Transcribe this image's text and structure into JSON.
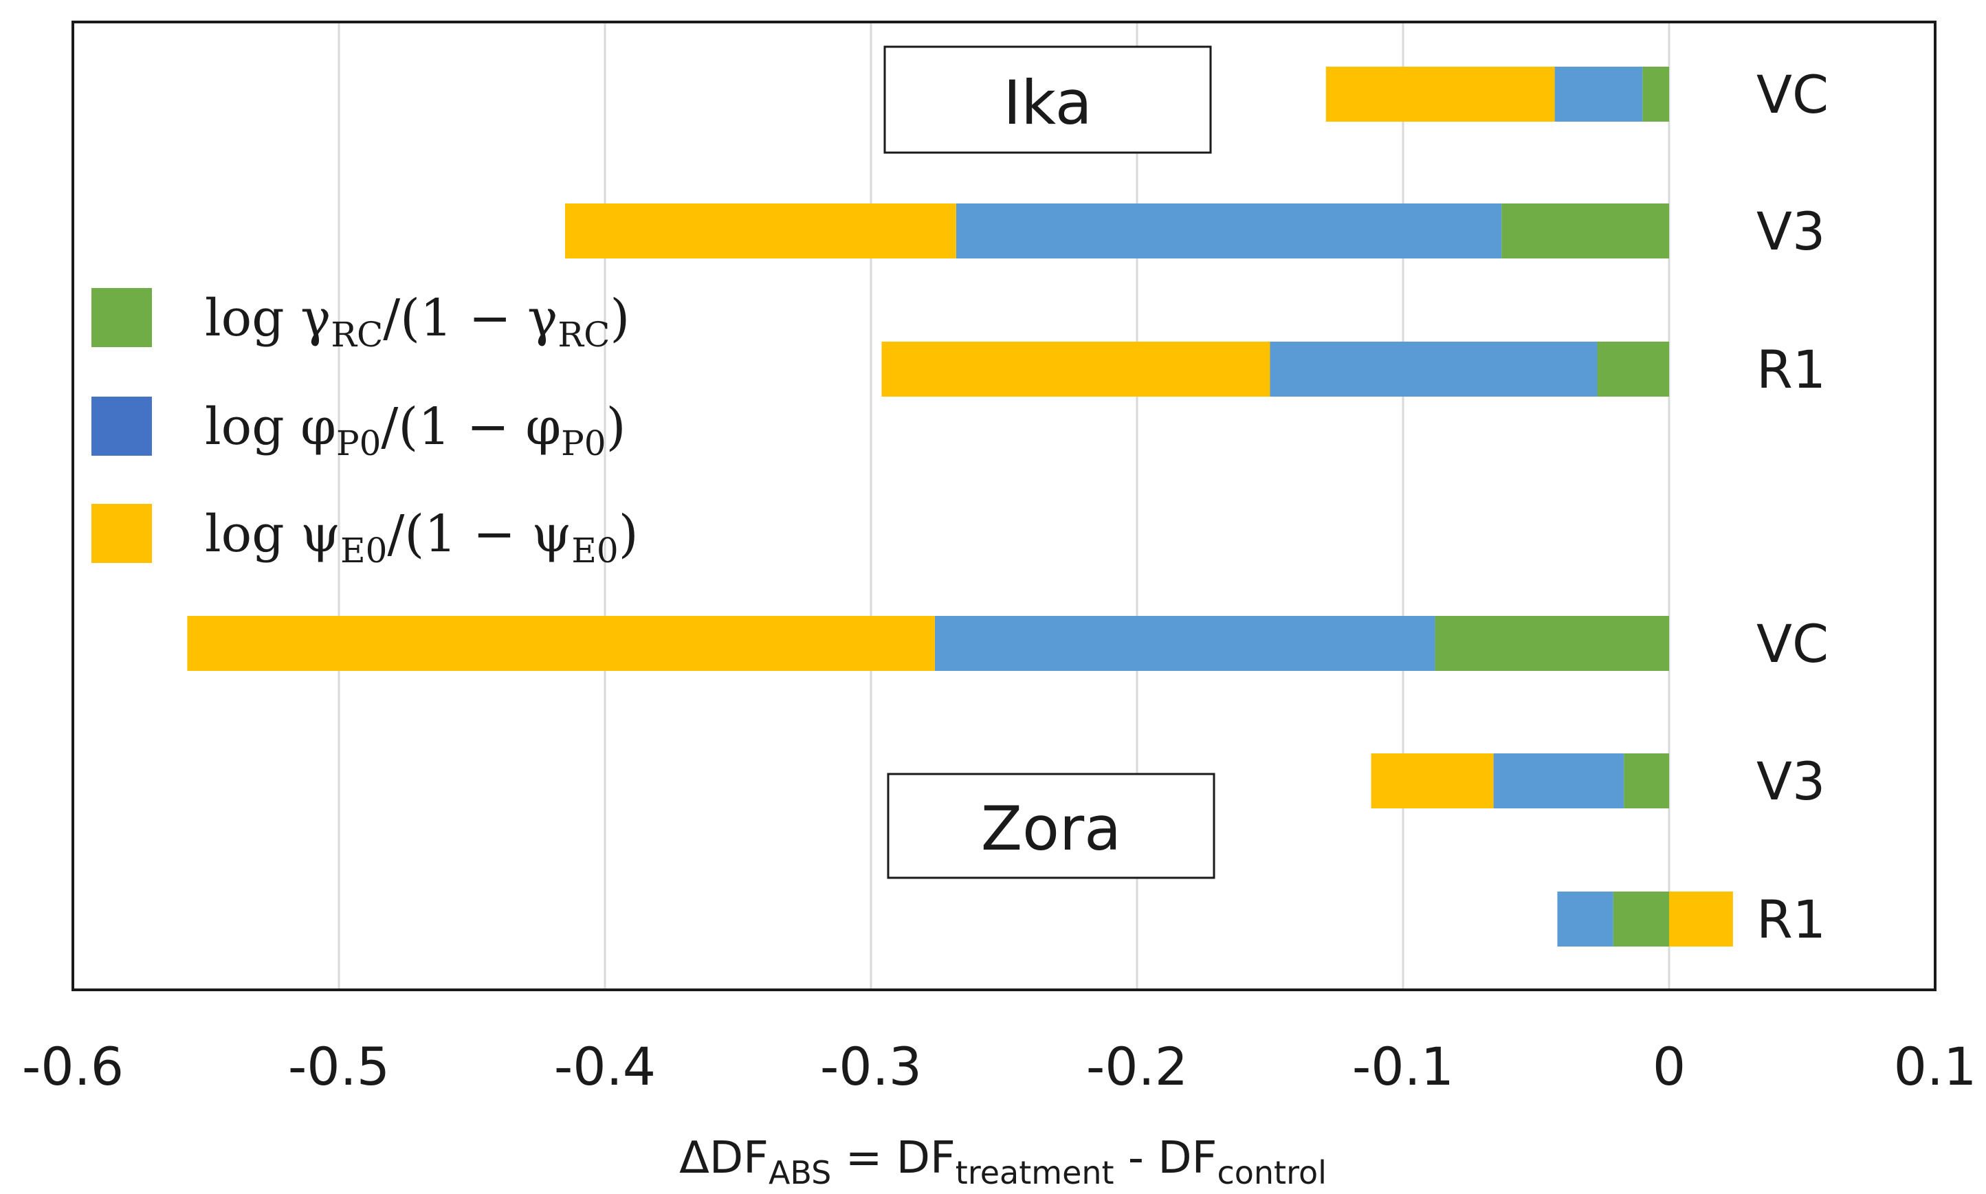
{
  "chart_data": {
    "type": "bar",
    "orientation": "horizontal",
    "stacked": true,
    "xlim": [
      -0.6,
      0.1
    ],
    "x_ticks": [
      -0.6,
      -0.5,
      -0.4,
      -0.3,
      -0.2,
      -0.1,
      0,
      0.1
    ],
    "x_tick_labels": [
      "-0.6",
      "-0.5",
      "-0.4",
      "-0.3",
      "-0.2",
      "-0.1",
      "0",
      "0.1"
    ],
    "grid": "vertical",
    "xlabel": {
      "prefix": "ΔDF",
      "prefix_sub": "ABS",
      "middle": " = DF",
      "middle_sub": "treatment",
      "suffix": " - DF",
      "suffix_sub": "control"
    },
    "groups": [
      "Ika",
      "Zora"
    ],
    "categories": [
      {
        "label": "VC",
        "group": "Ika"
      },
      {
        "label": "V3",
        "group": "Ika"
      },
      {
        "label": "R1",
        "group": "Ika"
      },
      {
        "label": "VC",
        "group": "Zora"
      },
      {
        "label": "V3",
        "group": "Zora"
      },
      {
        "label": "R1",
        "group": "Zora"
      }
    ],
    "series": [
      {
        "key": "gamma",
        "color": "#70ad47",
        "legend": {
          "base": "log γ",
          "sub": "RC",
          "mid": "/(1 − γ",
          "sub2": "RC",
          "end": ")"
        },
        "values": [
          -0.01,
          -0.063,
          -0.027,
          -0.088,
          -0.017,
          -0.021
        ]
      },
      {
        "key": "phi",
        "color": "#5b9bd5",
        "legend_swatch_color": "#4472c4",
        "legend": {
          "base": "log φ",
          "sub": "P0",
          "mid": "/(1 − φ",
          "sub2": "P0",
          "end": ")"
        },
        "values": [
          -0.033,
          -0.205,
          -0.123,
          -0.188,
          -0.049,
          -0.021
        ]
      },
      {
        "key": "psi",
        "color": "#ffc000",
        "legend": {
          "base": "log ψ",
          "sub": "E0",
          "mid": "/(1 − ψ",
          "sub2": "E0",
          "end": ")"
        },
        "values": [
          -0.086,
          -0.147,
          -0.146,
          -0.281,
          -0.046,
          0.024
        ]
      }
    ]
  }
}
